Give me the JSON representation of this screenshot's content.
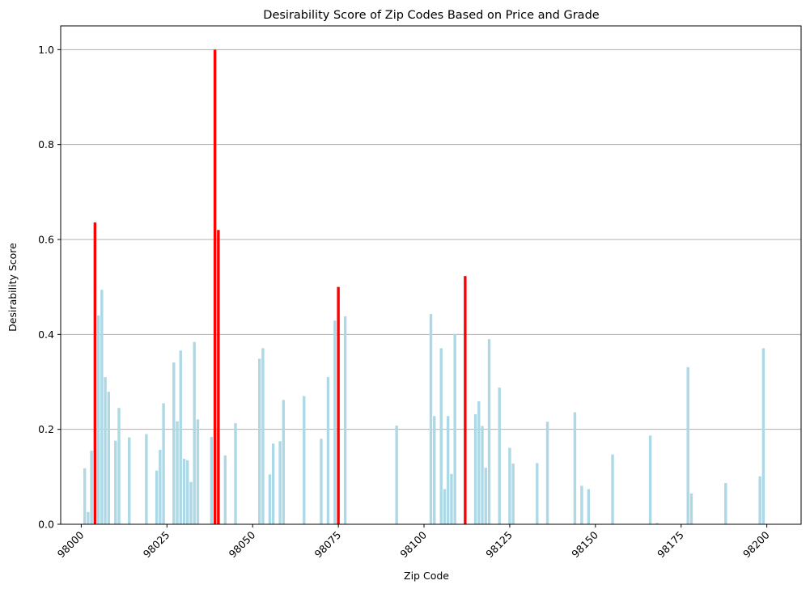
{
  "chart_data": {
    "type": "bar",
    "title": "Desirability Score of Zip Codes Based on Price and Grade",
    "xlabel": "Zip Code",
    "ylabel": "Desirability Score",
    "xlim": [
      97994,
      98210
    ],
    "ylim": [
      0,
      1.05
    ],
    "xticks": [
      98000,
      98025,
      98050,
      98075,
      98100,
      98125,
      98150,
      98175,
      98200
    ],
    "xtick_labels": [
      "98000",
      "98025",
      "98050",
      "98075",
      "98100",
      "98125",
      "98150",
      "98175",
      "98200"
    ],
    "yticks": [
      0.0,
      0.2,
      0.4,
      0.6,
      0.8,
      1.0
    ],
    "ytick_labels": [
      "0.0",
      "0.2",
      "0.4",
      "0.6",
      "0.8",
      "1.0"
    ],
    "grid": "y",
    "colors": {
      "default": "#add8e6",
      "highlight": "#ff0000"
    },
    "bars": [
      {
        "zip": 98001,
        "value": 0.118,
        "highlight": false
      },
      {
        "zip": 98002,
        "value": 0.026,
        "highlight": false
      },
      {
        "zip": 98003,
        "value": 0.155,
        "highlight": false
      },
      {
        "zip": 98004,
        "value": 0.636,
        "highlight": true
      },
      {
        "zip": 98005,
        "value": 0.44,
        "highlight": false
      },
      {
        "zip": 98006,
        "value": 0.494,
        "highlight": false
      },
      {
        "zip": 98007,
        "value": 0.31,
        "highlight": false
      },
      {
        "zip": 98008,
        "value": 0.279,
        "highlight": false
      },
      {
        "zip": 98010,
        "value": 0.176,
        "highlight": false
      },
      {
        "zip": 98011,
        "value": 0.245,
        "highlight": false
      },
      {
        "zip": 98014,
        "value": 0.183,
        "highlight": false
      },
      {
        "zip": 98019,
        "value": 0.19,
        "highlight": false
      },
      {
        "zip": 98022,
        "value": 0.113,
        "highlight": false
      },
      {
        "zip": 98023,
        "value": 0.157,
        "highlight": false
      },
      {
        "zip": 98024,
        "value": 0.255,
        "highlight": false
      },
      {
        "zip": 98027,
        "value": 0.341,
        "highlight": false
      },
      {
        "zip": 98028,
        "value": 0.217,
        "highlight": false
      },
      {
        "zip": 98029,
        "value": 0.366,
        "highlight": false
      },
      {
        "zip": 98030,
        "value": 0.138,
        "highlight": false
      },
      {
        "zip": 98031,
        "value": 0.135,
        "highlight": false
      },
      {
        "zip": 98032,
        "value": 0.089,
        "highlight": false
      },
      {
        "zip": 98033,
        "value": 0.384,
        "highlight": false
      },
      {
        "zip": 98034,
        "value": 0.221,
        "highlight": false
      },
      {
        "zip": 98038,
        "value": 0.184,
        "highlight": false
      },
      {
        "zip": 98039,
        "value": 1.0,
        "highlight": true
      },
      {
        "zip": 98040,
        "value": 0.62,
        "highlight": true
      },
      {
        "zip": 98042,
        "value": 0.145,
        "highlight": false
      },
      {
        "zip": 98045,
        "value": 0.213,
        "highlight": false
      },
      {
        "zip": 98052,
        "value": 0.349,
        "highlight": false
      },
      {
        "zip": 98053,
        "value": 0.371,
        "highlight": false
      },
      {
        "zip": 98055,
        "value": 0.105,
        "highlight": false
      },
      {
        "zip": 98056,
        "value": 0.17,
        "highlight": false
      },
      {
        "zip": 98058,
        "value": 0.175,
        "highlight": false
      },
      {
        "zip": 98059,
        "value": 0.262,
        "highlight": false
      },
      {
        "zip": 98065,
        "value": 0.27,
        "highlight": false
      },
      {
        "zip": 98070,
        "value": 0.18,
        "highlight": false
      },
      {
        "zip": 98072,
        "value": 0.31,
        "highlight": false
      },
      {
        "zip": 98074,
        "value": 0.429,
        "highlight": false
      },
      {
        "zip": 98075,
        "value": 0.5,
        "highlight": true
      },
      {
        "zip": 98077,
        "value": 0.438,
        "highlight": false
      },
      {
        "zip": 98092,
        "value": 0.208,
        "highlight": false
      },
      {
        "zip": 98102,
        "value": 0.443,
        "highlight": false
      },
      {
        "zip": 98103,
        "value": 0.228,
        "highlight": false
      },
      {
        "zip": 98105,
        "value": 0.371,
        "highlight": false
      },
      {
        "zip": 98106,
        "value": 0.074,
        "highlight": false
      },
      {
        "zip": 98107,
        "value": 0.228,
        "highlight": false
      },
      {
        "zip": 98108,
        "value": 0.106,
        "highlight": false
      },
      {
        "zip": 98109,
        "value": 0.401,
        "highlight": false
      },
      {
        "zip": 98112,
        "value": 0.523,
        "highlight": true
      },
      {
        "zip": 98115,
        "value": 0.232,
        "highlight": false
      },
      {
        "zip": 98116,
        "value": 0.259,
        "highlight": false
      },
      {
        "zip": 98117,
        "value": 0.207,
        "highlight": false
      },
      {
        "zip": 98118,
        "value": 0.119,
        "highlight": false
      },
      {
        "zip": 98119,
        "value": 0.39,
        "highlight": false
      },
      {
        "zip": 98122,
        "value": 0.288,
        "highlight": false
      },
      {
        "zip": 98125,
        "value": 0.161,
        "highlight": false
      },
      {
        "zip": 98126,
        "value": 0.128,
        "highlight": false
      },
      {
        "zip": 98133,
        "value": 0.129,
        "highlight": false
      },
      {
        "zip": 98136,
        "value": 0.216,
        "highlight": false
      },
      {
        "zip": 98144,
        "value": 0.236,
        "highlight": false
      },
      {
        "zip": 98146,
        "value": 0.081,
        "highlight": false
      },
      {
        "zip": 98148,
        "value": 0.074,
        "highlight": false
      },
      {
        "zip": 98155,
        "value": 0.147,
        "highlight": false
      },
      {
        "zip": 98166,
        "value": 0.187,
        "highlight": false
      },
      {
        "zip": 98168,
        "value": 0.003,
        "highlight": false
      },
      {
        "zip": 98177,
        "value": 0.331,
        "highlight": false
      },
      {
        "zip": 98178,
        "value": 0.065,
        "highlight": false
      },
      {
        "zip": 98188,
        "value": 0.087,
        "highlight": false
      },
      {
        "zip": 98198,
        "value": 0.101,
        "highlight": false
      },
      {
        "zip": 98199,
        "value": 0.371,
        "highlight": false
      }
    ]
  }
}
